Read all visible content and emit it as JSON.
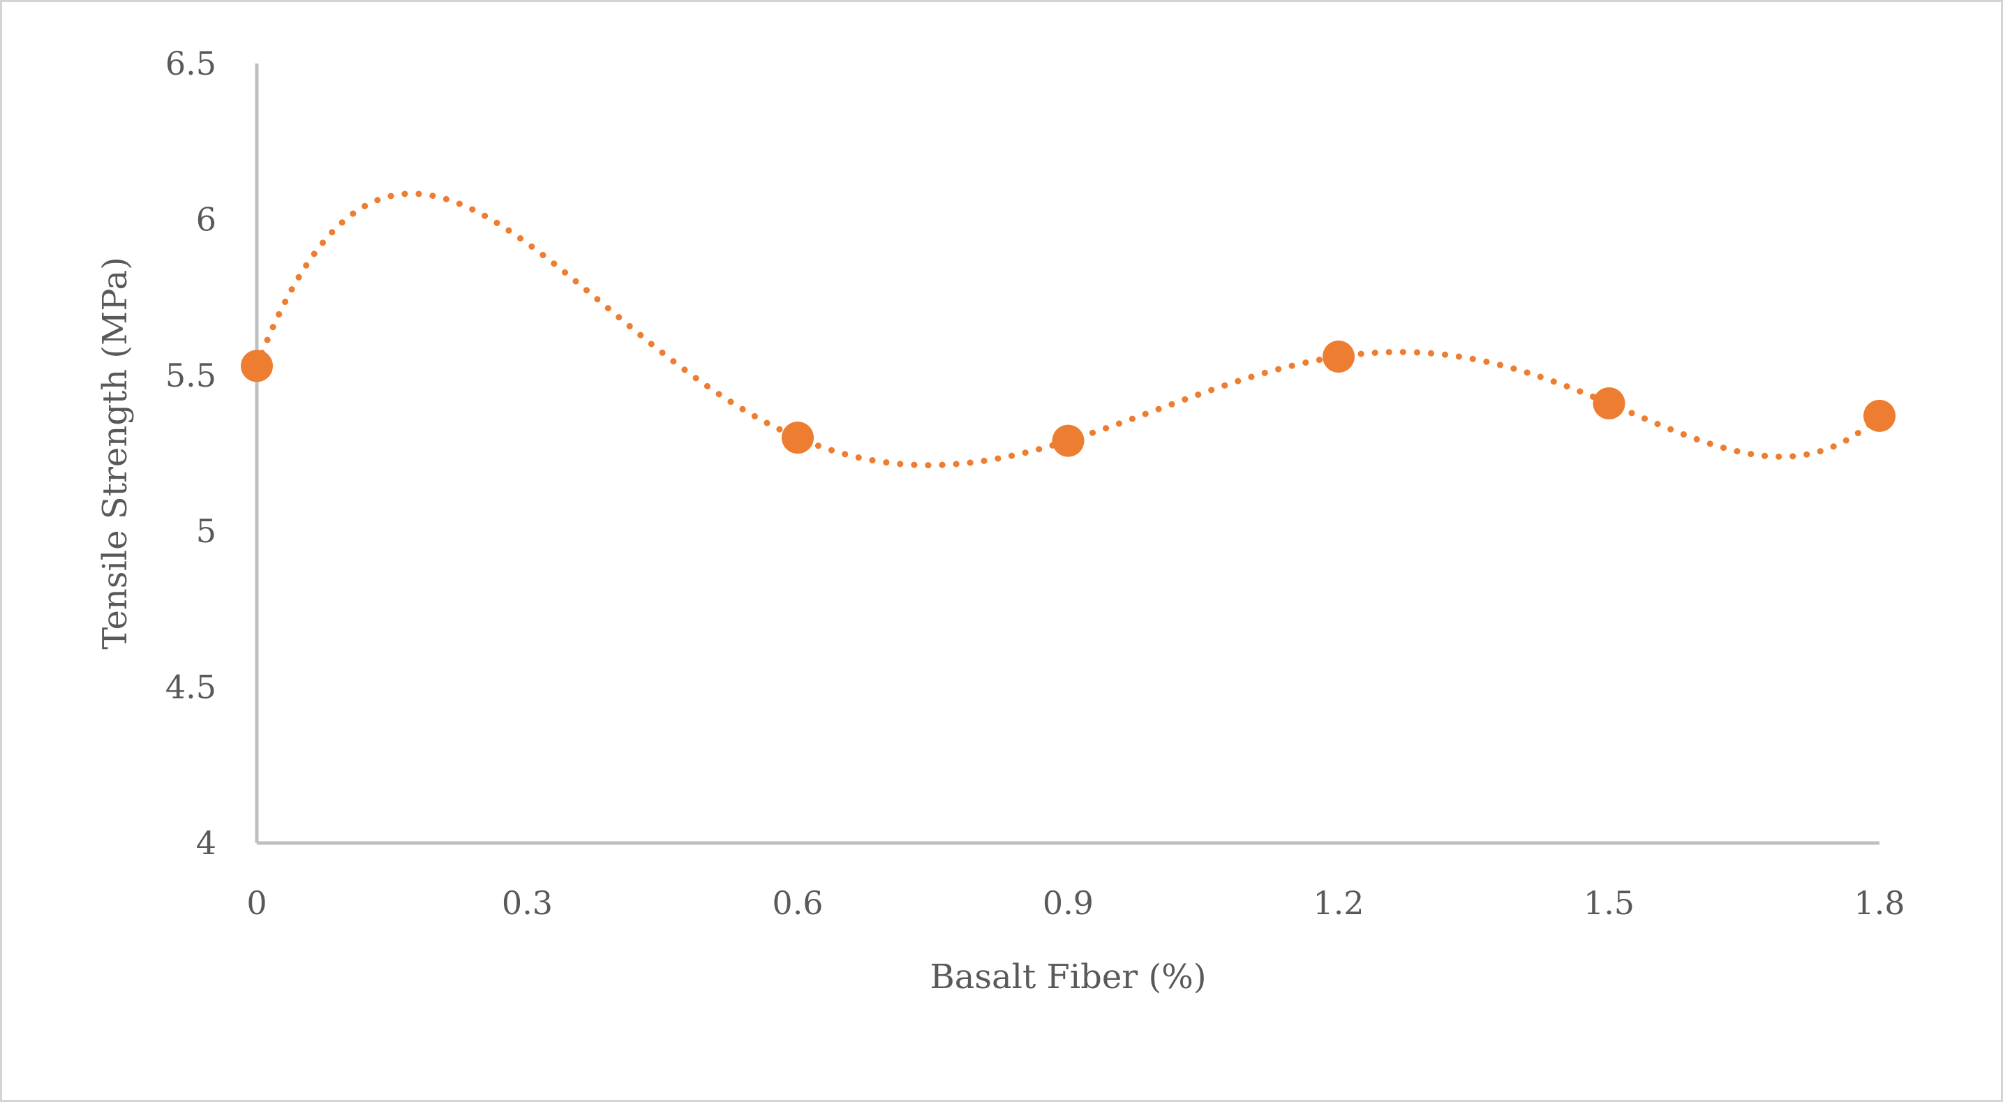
{
  "chart_data": {
    "type": "scatter",
    "title": "",
    "xlabel": "Basalt Fiber (%)",
    "ylabel": "Tensile Strength (MPa)",
    "xlim": [
      0,
      1.8
    ],
    "ylim": [
      4,
      6.5
    ],
    "xticks": [
      0,
      0.3,
      0.6,
      0.9,
      1.2,
      1.5,
      1.8
    ],
    "xtick_labels": [
      "0",
      "0.3",
      "0.6",
      "0.9",
      "1.2",
      "1.5",
      "1.8"
    ],
    "yticks": [
      4,
      4.5,
      5,
      5.5,
      6,
      6.5
    ],
    "ytick_labels": [
      "4",
      "4.5",
      "5",
      "5.5",
      "6",
      "6.5"
    ],
    "grid": false,
    "legend": "none",
    "series": [
      {
        "name": "Tensile Strength",
        "x": [
          0,
          0.6,
          0.9,
          1.2,
          1.5,
          1.8
        ],
        "y": [
          5.53,
          5.3,
          5.29,
          5.56,
          5.41,
          5.37
        ],
        "color": "#ED7D31",
        "line_style": "dotted-smooth-trendline"
      }
    ]
  },
  "colors": {
    "series": "#ED7D31",
    "axis": "#BFBFBF",
    "text": "#595959",
    "frame": "#D4D4D4"
  }
}
